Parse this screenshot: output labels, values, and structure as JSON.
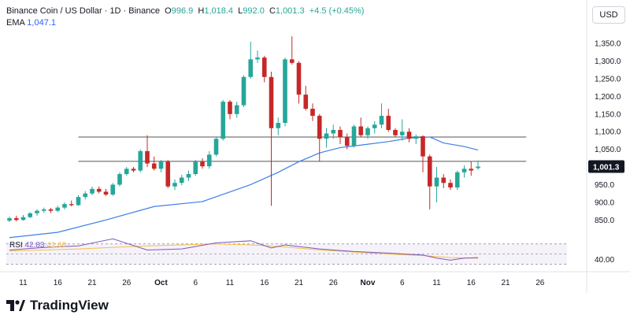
{
  "header": {
    "symbol": "Binance Coin / US Dollar · 1D · Binance",
    "o_label": "O",
    "o": "996.9",
    "h_label": "H",
    "h": "1,018.4",
    "l_label": "L",
    "l": "992.0",
    "c_label": "C",
    "c": "1,001.3",
    "chg": "+4.5 (+0.45%)",
    "ema_label": "EMA",
    "ema": "1,047.1",
    "rsi_label": "RSI",
    "rsi": "42.83",
    "rsi_ma": "41.60"
  },
  "currency": "USD",
  "branding": "TradingView",
  "colors": {
    "up": "#26a69a",
    "down": "#c62828",
    "ema": "#3f7ee8",
    "rsi": "#7e57c2",
    "rsi_ma": "#f5c242"
  },
  "chart_data": {
    "type": "candlestick",
    "y_ticks": [
      850,
      900,
      950,
      1000,
      1050,
      1100,
      1150,
      1200,
      1250,
      1300,
      1350
    ],
    "y_tick_labels": [
      "850.0",
      "900.0",
      "950.0",
      "1,000.0",
      "1,050.0",
      "1,100.0",
      "1,150.0",
      "1,200.0",
      "1,250.0",
      "1,300.0",
      "1,350.0"
    ],
    "ylim": [
      815,
      1395
    ],
    "current_price": 1001.3,
    "current_price_label": "1,001.3",
    "x_ticks": [
      "6",
      "11",
      "16",
      "21",
      "26",
      "Oct",
      "6",
      "11",
      "16",
      "21",
      "26",
      "Nov",
      "6",
      "11",
      "16",
      "21",
      "26"
    ],
    "x_tick_offsets": [
      0,
      5,
      10,
      15,
      20,
      25,
      30,
      35,
      40,
      45,
      50,
      55,
      60,
      65,
      70,
      75,
      80
    ],
    "first_day_offset": -3,
    "horizontal_lines": [
      {
        "price": 1085,
        "start": 13,
        "end": 78
      },
      {
        "price": 1016,
        "start": 13,
        "end": 78
      }
    ],
    "candles": [
      [
        848,
        860,
        844,
        855
      ],
      [
        855,
        862,
        846,
        850
      ],
      [
        850,
        864,
        848,
        858
      ],
      [
        858,
        872,
        855,
        869
      ],
      [
        869,
        880,
        862,
        876
      ],
      [
        876,
        885,
        870,
        880
      ],
      [
        880,
        884,
        870,
        876
      ],
      [
        876,
        890,
        872,
        885
      ],
      [
        885,
        900,
        880,
        895
      ],
      [
        895,
        905,
        888,
        892
      ],
      [
        892,
        920,
        890,
        915
      ],
      [
        915,
        932,
        908,
        925
      ],
      [
        925,
        945,
        920,
        938
      ],
      [
        938,
        945,
        925,
        930
      ],
      [
        930,
        938,
        918,
        922
      ],
      [
        922,
        955,
        918,
        950
      ],
      [
        950,
        985,
        945,
        980
      ],
      [
        980,
        1000,
        975,
        995
      ],
      [
        995,
        1000,
        985,
        990
      ],
      [
        990,
        1050,
        985,
        1045
      ],
      [
        1045,
        1090,
        1000,
        1010
      ],
      [
        1010,
        1030,
        990,
        995
      ],
      [
        995,
        1020,
        985,
        1015
      ],
      [
        1015,
        1020,
        940,
        945
      ],
      [
        945,
        965,
        935,
        955
      ],
      [
        955,
        978,
        948,
        970
      ],
      [
        970,
        990,
        960,
        980
      ],
      [
        980,
        1020,
        975,
        1015
      ],
      [
        1015,
        1025,
        995,
        1002
      ],
      [
        1002,
        1045,
        995,
        1035
      ],
      [
        1035,
        1085,
        1030,
        1080
      ],
      [
        1080,
        1190,
        1075,
        1185
      ],
      [
        1185,
        1190,
        1135,
        1150
      ],
      [
        1150,
        1185,
        1140,
        1175
      ],
      [
        1175,
        1260,
        1170,
        1255
      ],
      [
        1255,
        1355,
        1250,
        1305
      ],
      [
        1305,
        1330,
        1295,
        1310
      ],
      [
        1310,
        1315,
        1240,
        1255
      ],
      [
        1255,
        1270,
        890,
        1110
      ],
      [
        1110,
        1140,
        1090,
        1125
      ],
      [
        1125,
        1310,
        1115,
        1305
      ],
      [
        1305,
        1370,
        1290,
        1295
      ],
      [
        1295,
        1300,
        1180,
        1205
      ],
      [
        1205,
        1230,
        1160,
        1165
      ],
      [
        1165,
        1180,
        1130,
        1145
      ],
      [
        1145,
        1150,
        1015,
        1080
      ],
      [
        1080,
        1110,
        1055,
        1095
      ],
      [
        1095,
        1120,
        1080,
        1105
      ],
      [
        1105,
        1115,
        1065,
        1085
      ],
      [
        1085,
        1095,
        1050,
        1060
      ],
      [
        1060,
        1120,
        1055,
        1115
      ],
      [
        1115,
        1140,
        1085,
        1090
      ],
      [
        1090,
        1115,
        1080,
        1110
      ],
      [
        1110,
        1130,
        1095,
        1120
      ],
      [
        1120,
        1180,
        1110,
        1145
      ],
      [
        1145,
        1165,
        1100,
        1105
      ],
      [
        1105,
        1110,
        1085,
        1090
      ],
      [
        1090,
        1135,
        1075,
        1100
      ],
      [
        1100,
        1110,
        1070,
        1080
      ],
      [
        1080,
        1092,
        1065,
        1087
      ],
      [
        1087,
        1090,
        985,
        1030
      ],
      [
        1030,
        1035,
        880,
        945
      ],
      [
        945,
        1000,
        900,
        970
      ],
      [
        970,
        980,
        940,
        955
      ],
      [
        955,
        965,
        935,
        942
      ],
      [
        942,
        990,
        935,
        985
      ],
      [
        985,
        1005,
        970,
        995
      ],
      [
        995,
        1015,
        975,
        990
      ],
      [
        996.9,
        1018.4,
        992,
        1001.3
      ]
    ],
    "ema": [
      [
        0,
        800
      ],
      [
        7,
        815
      ],
      [
        14,
        850
      ],
      [
        21,
        888
      ],
      [
        28,
        902
      ],
      [
        35,
        950
      ],
      [
        39,
        985
      ],
      [
        42,
        1015
      ],
      [
        45,
        1040
      ],
      [
        48,
        1055
      ],
      [
        51,
        1062
      ],
      [
        55,
        1072
      ],
      [
        58,
        1082
      ],
      [
        61,
        1085
      ],
      [
        63,
        1068
      ],
      [
        66,
        1058
      ],
      [
        68,
        1048
      ]
    ],
    "rsi": [
      [
        0,
        58
      ],
      [
        5,
        63
      ],
      [
        10,
        66
      ],
      [
        15,
        80
      ],
      [
        20,
        58
      ],
      [
        25,
        60
      ],
      [
        30,
        72
      ],
      [
        35,
        76
      ],
      [
        38,
        62
      ],
      [
        40,
        68
      ],
      [
        45,
        60
      ],
      [
        50,
        55
      ],
      [
        55,
        52
      ],
      [
        60,
        48
      ],
      [
        62,
        42
      ],
      [
        64,
        38
      ],
      [
        66,
        42
      ],
      [
        68,
        43
      ]
    ],
    "rsi_ma": [
      [
        0,
        56
      ],
      [
        10,
        60
      ],
      [
        20,
        66
      ],
      [
        30,
        70
      ],
      [
        35,
        68
      ],
      [
        40,
        64
      ],
      [
        45,
        58
      ],
      [
        50,
        54
      ],
      [
        55,
        50
      ],
      [
        60,
        47
      ],
      [
        64,
        43
      ],
      [
        68,
        41.6
      ]
    ],
    "rsi_ylim": [
      20,
      85
    ],
    "rsi_levels": [
      70,
      50,
      30
    ],
    "rsi_right_label": "40.00",
    "rsi_right_value": 40
  }
}
